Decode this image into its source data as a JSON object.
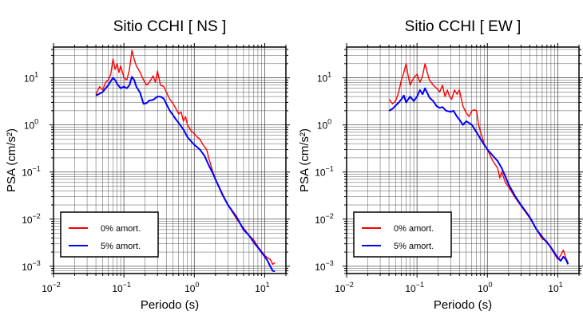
{
  "chart_data": [
    {
      "type": "line",
      "title": "Sitio CCHI [ NS ]",
      "xlabel": "Periodo (s)",
      "ylabel": "PSA (cm/s²)",
      "x_scale": "log",
      "y_scale": "log",
      "xlim": [
        0.01,
        20
      ],
      "ylim": [
        0.0007,
        45
      ],
      "x_ticks": [
        {
          "base": "10",
          "exp": "−2"
        },
        {
          "base": "10",
          "exp": "−1"
        },
        {
          "base": "10",
          "exp": "0"
        },
        {
          "base": "10",
          "exp": "1"
        }
      ],
      "y_ticks": [
        {
          "base": "10",
          "exp": "−3"
        },
        {
          "base": "10",
          "exp": "−2"
        },
        {
          "base": "10",
          "exp": "−1"
        },
        {
          "base": "10",
          "exp": "0"
        },
        {
          "base": "10",
          "exp": "1"
        }
      ],
      "grid": true,
      "legend_position": "bottom-left",
      "series": [
        {
          "name": "0% amort.",
          "color": "#ff0000",
          "points": [
            [
              0.04,
              4.4
            ],
            [
              0.045,
              6.5
            ],
            [
              0.05,
              5.5
            ],
            [
              0.055,
              8.0
            ],
            [
              0.06,
              9.0
            ],
            [
              0.065,
              12
            ],
            [
              0.07,
              25
            ],
            [
              0.075,
              15
            ],
            [
              0.08,
              20
            ],
            [
              0.085,
              13
            ],
            [
              0.09,
              18
            ],
            [
              0.1,
              10
            ],
            [
              0.11,
              9
            ],
            [
              0.12,
              15
            ],
            [
              0.13,
              38
            ],
            [
              0.14,
              25
            ],
            [
              0.15,
              18
            ],
            [
              0.17,
              13
            ],
            [
              0.19,
              9
            ],
            [
              0.21,
              7
            ],
            [
              0.23,
              8
            ],
            [
              0.26,
              11
            ],
            [
              0.28,
              8
            ],
            [
              0.3,
              14
            ],
            [
              0.33,
              7
            ],
            [
              0.37,
              6.5
            ],
            [
              0.4,
              5
            ],
            [
              0.45,
              3.5
            ],
            [
              0.5,
              2.8
            ],
            [
              0.55,
              2.2
            ],
            [
              0.6,
              1.7
            ],
            [
              0.65,
              1.9
            ],
            [
              0.7,
              1.2
            ],
            [
              0.75,
              1.5
            ],
            [
              0.8,
              1.0
            ],
            [
              0.9,
              0.75
            ],
            [
              1.0,
              0.65
            ],
            [
              1.1,
              0.55
            ],
            [
              1.2,
              0.5
            ],
            [
              1.3,
              0.4
            ],
            [
              1.4,
              0.34
            ],
            [
              1.5,
              0.3
            ],
            [
              1.6,
              0.2
            ],
            [
              1.8,
              0.11
            ],
            [
              2.0,
              0.07
            ],
            [
              2.5,
              0.032
            ],
            [
              3,
              0.02
            ],
            [
              4,
              0.01
            ],
            [
              5,
              0.0065
            ],
            [
              6,
              0.0045
            ],
            [
              7,
              0.0036
            ],
            [
              8,
              0.0026
            ],
            [
              10,
              0.0017
            ],
            [
              11,
              0.0015
            ],
            [
              12,
              0.0014
            ],
            [
              13,
              0.0011
            ],
            [
              14,
              0.0012
            ]
          ]
        },
        {
          "name": "5% amort.",
          "color": "#0000ff",
          "points": [
            [
              0.04,
              4.2
            ],
            [
              0.045,
              4.6
            ],
            [
              0.05,
              5.0
            ],
            [
              0.055,
              6.0
            ],
            [
              0.06,
              7.0
            ],
            [
              0.065,
              8.5
            ],
            [
              0.07,
              10
            ],
            [
              0.075,
              9
            ],
            [
              0.08,
              7.5
            ],
            [
              0.09,
              6.0
            ],
            [
              0.1,
              6.5
            ],
            [
              0.11,
              6.0
            ],
            [
              0.12,
              7.0
            ],
            [
              0.13,
              10.5
            ],
            [
              0.14,
              9.0
            ],
            [
              0.15,
              6.5
            ],
            [
              0.17,
              4.8
            ],
            [
              0.19,
              2.8
            ],
            [
              0.21,
              2.9
            ],
            [
              0.23,
              3.3
            ],
            [
              0.26,
              3.4
            ],
            [
              0.3,
              4.0
            ],
            [
              0.33,
              4.0
            ],
            [
              0.37,
              3.6
            ],
            [
              0.4,
              2.8
            ],
            [
              0.45,
              2.0
            ],
            [
              0.5,
              1.6
            ],
            [
              0.55,
              1.3
            ],
            [
              0.6,
              1.1
            ],
            [
              0.7,
              0.8
            ],
            [
              0.8,
              0.55
            ],
            [
              0.9,
              0.45
            ],
            [
              1.0,
              0.38
            ],
            [
              1.2,
              0.3
            ],
            [
              1.4,
              0.22
            ],
            [
              1.6,
              0.14
            ],
            [
              1.8,
              0.1
            ],
            [
              2.0,
              0.07
            ],
            [
              2.5,
              0.034
            ],
            [
              3,
              0.02
            ],
            [
              4,
              0.011
            ],
            [
              5,
              0.006
            ],
            [
              6,
              0.0045
            ],
            [
              7,
              0.0032
            ],
            [
              8,
              0.0025
            ],
            [
              10,
              0.0016
            ],
            [
              11,
              0.0013
            ],
            [
              12,
              0.001
            ],
            [
              13,
              0.0008
            ],
            [
              14,
              0.00078
            ]
          ]
        }
      ]
    },
    {
      "type": "line",
      "title": "Sitio CCHI [ EW ]",
      "xlabel": "Periodo (s)",
      "ylabel": "PSA (cm/s²)",
      "x_scale": "log",
      "y_scale": "log",
      "xlim": [
        0.01,
        20
      ],
      "ylim": [
        0.0007,
        45
      ],
      "x_ticks": [
        {
          "base": "10",
          "exp": "−2"
        },
        {
          "base": "10",
          "exp": "−1"
        },
        {
          "base": "10",
          "exp": "0"
        },
        {
          "base": "10",
          "exp": "1"
        }
      ],
      "y_ticks": [
        {
          "base": "10",
          "exp": "−3"
        },
        {
          "base": "10",
          "exp": "−2"
        },
        {
          "base": "10",
          "exp": "−1"
        },
        {
          "base": "10",
          "exp": "0"
        },
        {
          "base": "10",
          "exp": "1"
        }
      ],
      "grid": true,
      "legend_position": "bottom-left",
      "series": [
        {
          "name": "0% amort.",
          "color": "#ff0000",
          "points": [
            [
              0.04,
              3.5
            ],
            [
              0.045,
              2.8
            ],
            [
              0.05,
              3.3
            ],
            [
              0.055,
              5
            ],
            [
              0.06,
              9
            ],
            [
              0.065,
              13
            ],
            [
              0.07,
              20
            ],
            [
              0.075,
              11
            ],
            [
              0.08,
              7
            ],
            [
              0.085,
              8.5
            ],
            [
              0.09,
              10
            ],
            [
              0.1,
              12
            ],
            [
              0.11,
              8
            ],
            [
              0.12,
              11
            ],
            [
              0.13,
              20
            ],
            [
              0.14,
              13
            ],
            [
              0.15,
              9
            ],
            [
              0.17,
              7
            ],
            [
              0.19,
              6
            ],
            [
              0.21,
              5
            ],
            [
              0.23,
              7
            ],
            [
              0.25,
              4
            ],
            [
              0.27,
              5.5
            ],
            [
              0.29,
              4
            ],
            [
              0.31,
              3.5
            ],
            [
              0.34,
              5.5
            ],
            [
              0.37,
              4.5
            ],
            [
              0.4,
              5.5
            ],
            [
              0.45,
              2.5
            ],
            [
              0.5,
              1.8
            ],
            [
              0.55,
              1.5
            ],
            [
              0.6,
              2
            ],
            [
              0.65,
              2.1
            ],
            [
              0.7,
              2.0
            ],
            [
              0.75,
              1.0
            ],
            [
              0.8,
              0.7
            ],
            [
              0.9,
              0.4
            ],
            [
              1.0,
              0.3
            ],
            [
              1.1,
              0.22
            ],
            [
              1.2,
              0.17
            ],
            [
              1.4,
              0.12
            ],
            [
              1.5,
              0.075
            ],
            [
              1.6,
              0.1
            ],
            [
              1.8,
              0.06
            ],
            [
              2.0,
              0.048
            ],
            [
              2.5,
              0.028
            ],
            [
              3,
              0.019
            ],
            [
              4,
              0.0105
            ],
            [
              5,
              0.006
            ],
            [
              6,
              0.0038
            ],
            [
              7,
              0.0034
            ],
            [
              8,
              0.0024
            ],
            [
              10,
              0.0014
            ],
            [
              11,
              0.0017
            ],
            [
              12,
              0.0022
            ],
            [
              13,
              0.0015
            ],
            [
              14,
              0.0012
            ]
          ]
        },
        {
          "name": "5% amort.",
          "color": "#0000ff",
          "points": [
            [
              0.04,
              2.0
            ],
            [
              0.045,
              2.2
            ],
            [
              0.05,
              2.6
            ],
            [
              0.055,
              3.0
            ],
            [
              0.06,
              3.5
            ],
            [
              0.065,
              4.2
            ],
            [
              0.07,
              3.0
            ],
            [
              0.075,
              3.5
            ],
            [
              0.08,
              4.0
            ],
            [
              0.09,
              3.2
            ],
            [
              0.1,
              4.0
            ],
            [
              0.11,
              5.5
            ],
            [
              0.12,
              4.5
            ],
            [
              0.13,
              6.0
            ],
            [
              0.14,
              4.8
            ],
            [
              0.15,
              3.8
            ],
            [
              0.17,
              3.2
            ],
            [
              0.19,
              2.5
            ],
            [
              0.21,
              2.3
            ],
            [
              0.23,
              2.4
            ],
            [
              0.26,
              2.0
            ],
            [
              0.3,
              1.9
            ],
            [
              0.33,
              2.0
            ],
            [
              0.37,
              1.5
            ],
            [
              0.4,
              1.3
            ],
            [
              0.45,
              1.0
            ],
            [
              0.5,
              1.2
            ],
            [
              0.55,
              1.1
            ],
            [
              0.6,
              1.0
            ],
            [
              0.7,
              0.7
            ],
            [
              0.8,
              0.5
            ],
            [
              0.9,
              0.38
            ],
            [
              1.0,
              0.3
            ],
            [
              1.2,
              0.22
            ],
            [
              1.4,
              0.17
            ],
            [
              1.6,
              0.12
            ],
            [
              1.8,
              0.08
            ],
            [
              2.0,
              0.055
            ],
            [
              2.5,
              0.03
            ],
            [
              3,
              0.02
            ],
            [
              4,
              0.011
            ],
            [
              5,
              0.006
            ],
            [
              6,
              0.0042
            ],
            [
              7,
              0.0032
            ],
            [
              8,
              0.0025
            ],
            [
              10,
              0.0015
            ],
            [
              11,
              0.0013
            ],
            [
              12,
              0.0016
            ],
            [
              13,
              0.0014
            ],
            [
              14,
              0.0011
            ]
          ]
        }
      ]
    }
  ]
}
